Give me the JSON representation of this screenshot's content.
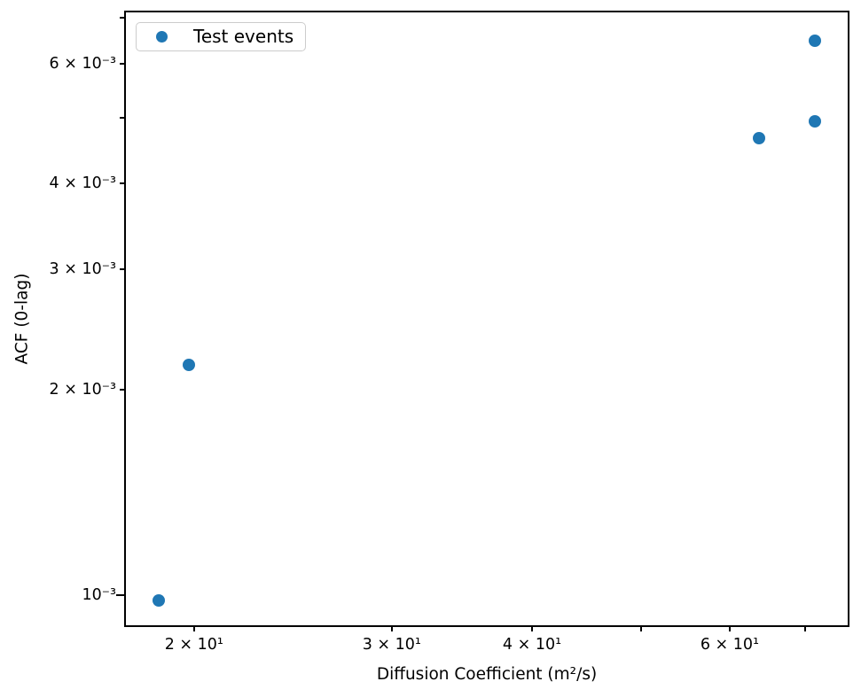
{
  "chart_data": {
    "type": "scatter",
    "title": "",
    "xlabel": "Diffusion Coefficient (m²/s)",
    "ylabel": "ACF (0-lag)",
    "xscale": "log",
    "yscale": "log",
    "xlim": [
      17.36,
      76.56
    ],
    "ylim": [
      0.0009,
      0.00715
    ],
    "grid": false,
    "legend": {
      "position": "upper left",
      "entries": [
        "Test events"
      ]
    },
    "series": [
      {
        "name": "Test events",
        "marker": "circle",
        "color": "#1f77b4",
        "points": [
          {
            "x": 18.6,
            "y": 0.00098
          },
          {
            "x": 19.8,
            "y": 0.00217
          },
          {
            "x": 63.7,
            "y": 0.00466
          },
          {
            "x": 71.4,
            "y": 0.00494
          },
          {
            "x": 71.4,
            "y": 0.00648
          }
        ]
      }
    ],
    "x_ticks": [
      {
        "value": 20,
        "label": "2 × 10¹",
        "major": false
      },
      {
        "value": 30,
        "label": "3 × 10¹",
        "major": false
      },
      {
        "value": 40,
        "label": "4 × 10¹",
        "major": false
      },
      {
        "value": 50,
        "label": "",
        "major": false
      },
      {
        "value": 60,
        "label": "6 × 10¹",
        "major": false
      },
      {
        "value": 70,
        "label": "",
        "major": false
      }
    ],
    "y_ticks": [
      {
        "value": 0.001,
        "label": "10⁻³",
        "major": true
      },
      {
        "value": 0.002,
        "label": "2 × 10⁻³",
        "major": false
      },
      {
        "value": 0.003,
        "label": "3 × 10⁻³",
        "major": false
      },
      {
        "value": 0.004,
        "label": "4 × 10⁻³",
        "major": false
      },
      {
        "value": 0.005,
        "label": "",
        "major": false
      },
      {
        "value": 0.006,
        "label": "6 × 10⁻³",
        "major": false
      },
      {
        "value": 0.007,
        "label": "",
        "major": false
      }
    ]
  },
  "colors": {
    "marker": "#1f77b4",
    "axis": "#000000",
    "legend_border": "#cccccc",
    "background": "#ffffff"
  }
}
